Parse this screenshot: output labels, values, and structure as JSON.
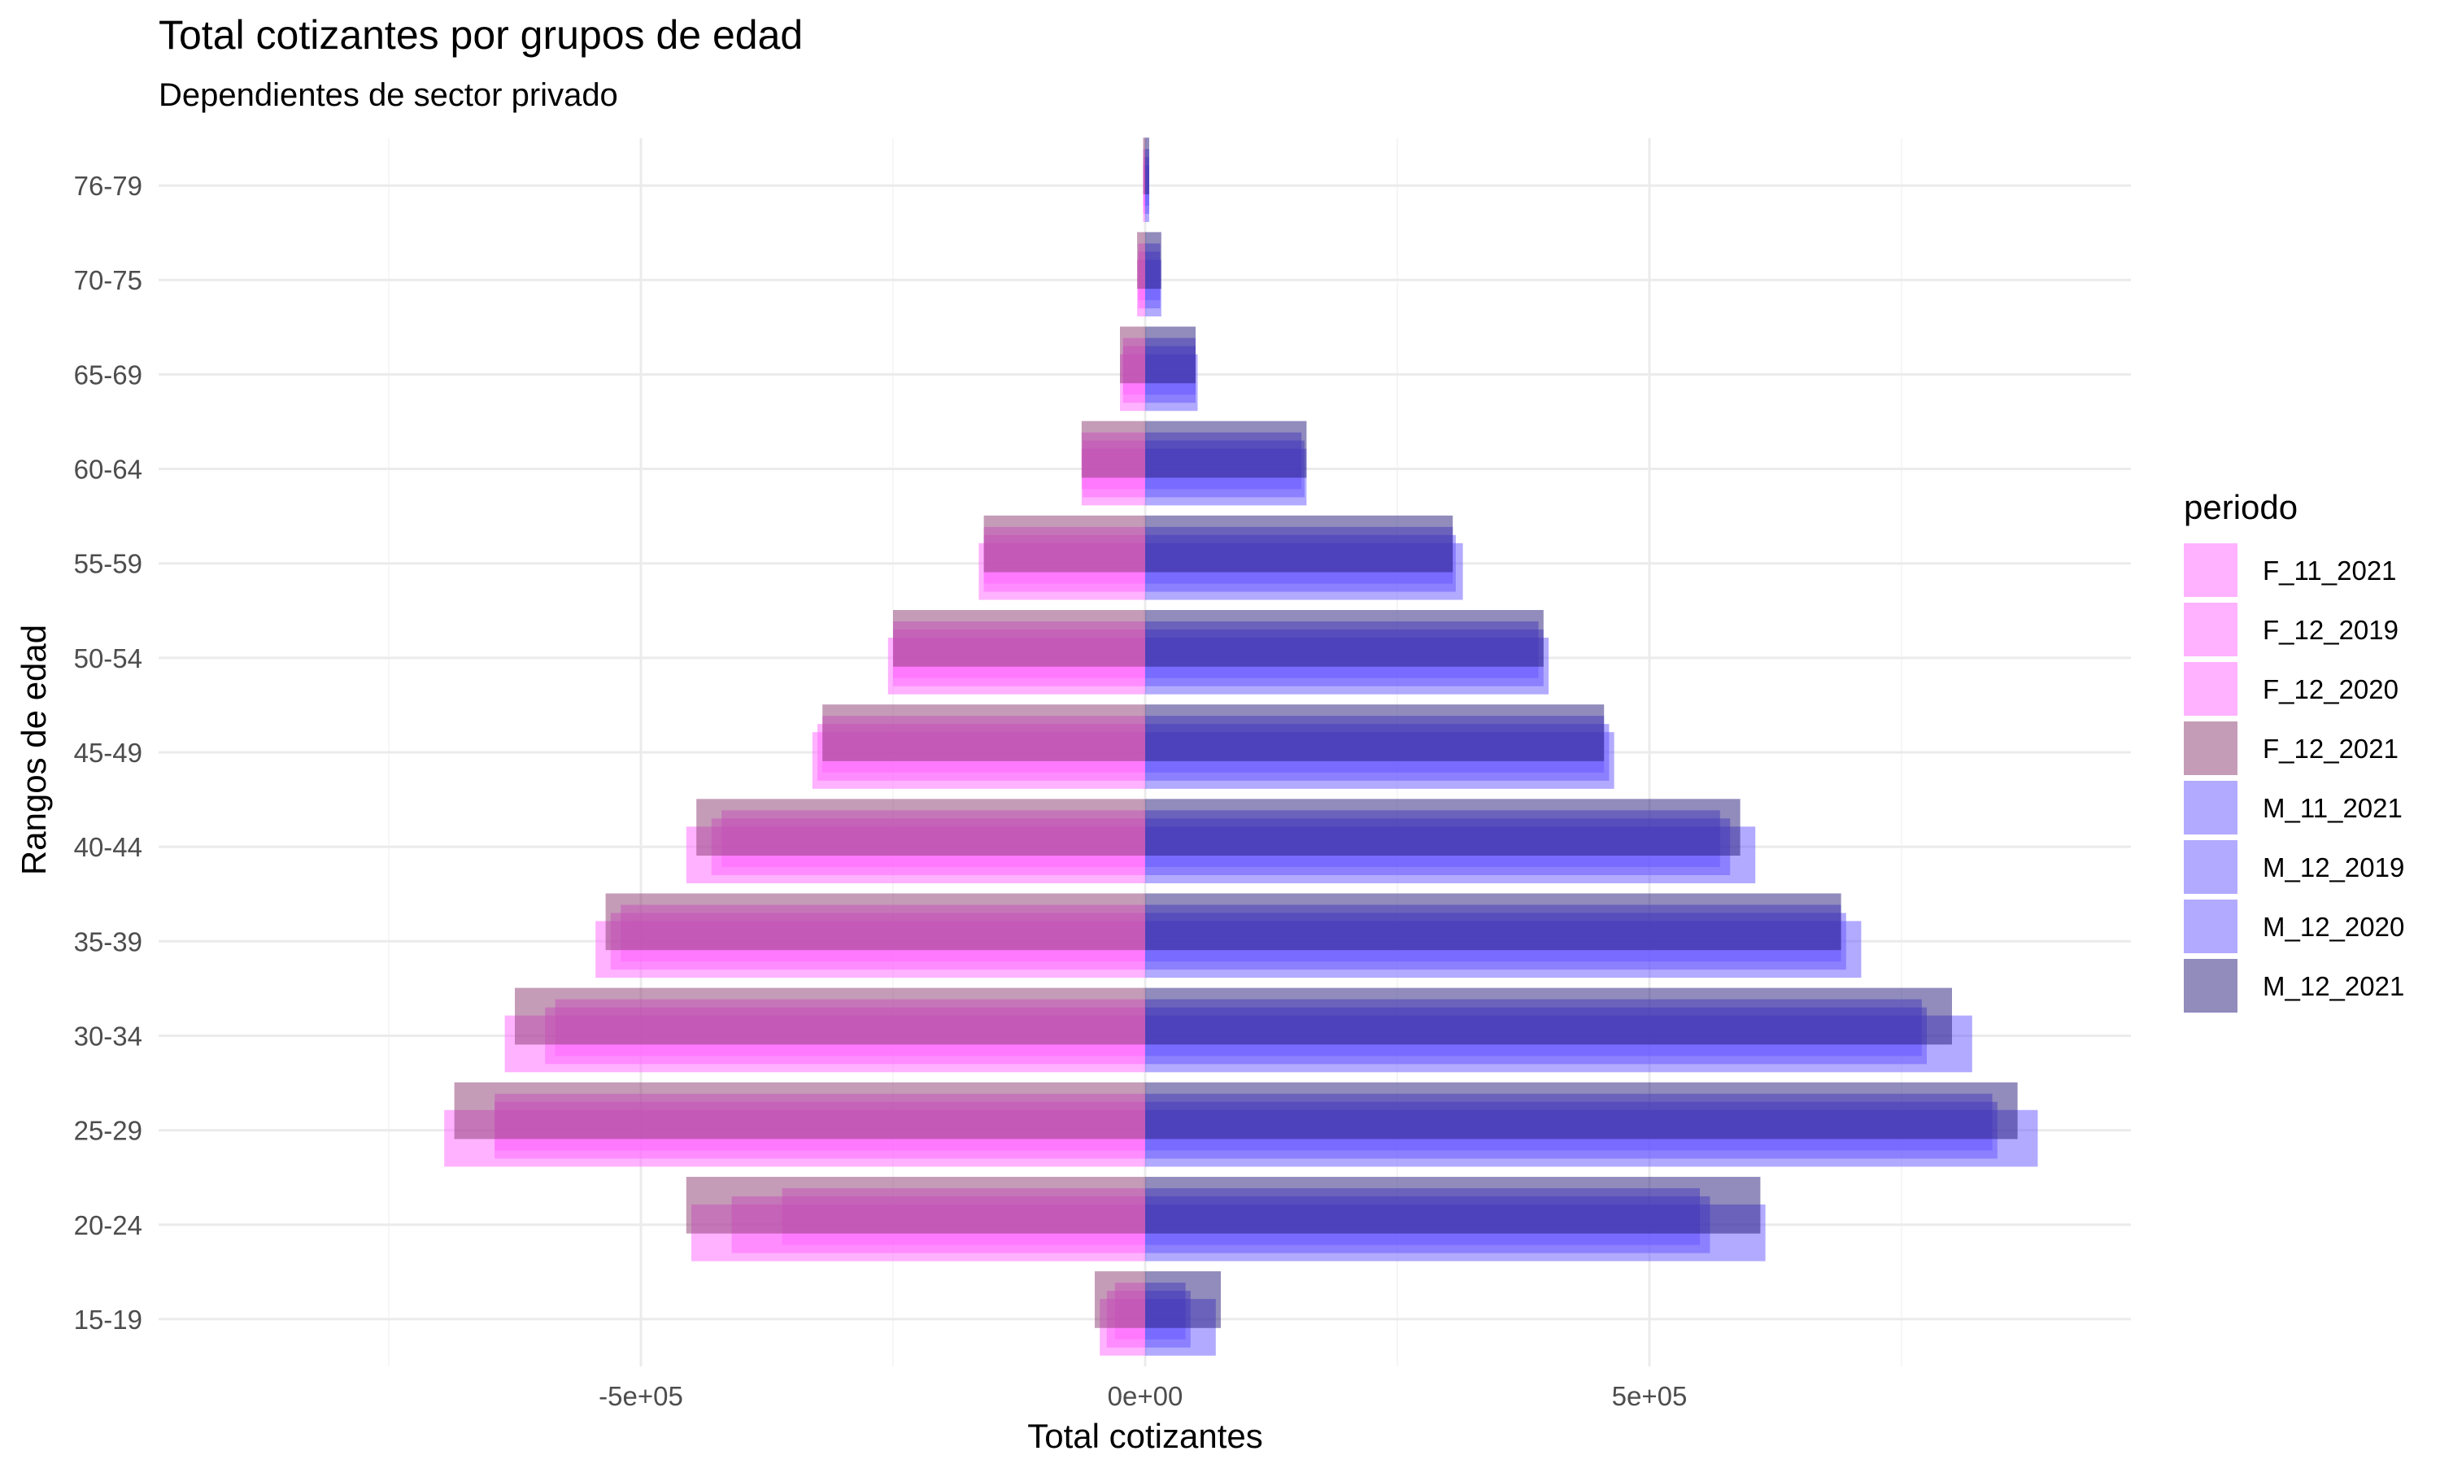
{
  "chart_data": {
    "type": "bar",
    "orientation": "horizontal",
    "title": "Total cotizantes por grupos de edad",
    "subtitle": "Dependientes de sector privado",
    "xlabel": "Total cotizantes",
    "ylabel": "Rangos de edad",
    "xlim": [
      -1500000,
      1000000
    ],
    "x_ticks": [
      -500000,
      0,
      500000
    ],
    "x_tick_labels": [
      "-5e+05",
      "0e+00",
      "5e+05"
    ],
    "grid": true,
    "legend_title": "periodo",
    "legend_position": "right",
    "categories": [
      "15-19",
      "20-24",
      "25-29",
      "30-34",
      "35-39",
      "40-44",
      "45-49",
      "50-54",
      "55-59",
      "60-64",
      "65-69",
      "70-75",
      "76-79"
    ],
    "series": [
      {
        "name": "F_11_2021",
        "color": "#ff66ff",
        "values": [
          -30000,
          -360000,
          -645000,
          -585000,
          -520000,
          -420000,
          -320000,
          -250000,
          -160000,
          -63000,
          -22000,
          -7000,
          -2000
        ]
      },
      {
        "name": "F_12_2019",
        "color": "#ff66ff",
        "values": [
          -45000,
          -450000,
          -695000,
          -635000,
          -545000,
          -455000,
          -330000,
          -255000,
          -165000,
          -63000,
          -25000,
          -8000,
          -2000
        ]
      },
      {
        "name": "F_12_2020",
        "color": "#ff66ff",
        "values": [
          -38000,
          -410000,
          -645000,
          -595000,
          -530000,
          -430000,
          -325000,
          -250000,
          -160000,
          -62000,
          -22000,
          -7000,
          -2000
        ]
      },
      {
        "name": "F_12_2021",
        "color": "#8b3a72",
        "values": [
          -50000,
          -455000,
          -685000,
          -625000,
          -535000,
          -445000,
          -320000,
          -250000,
          -160000,
          -63000,
          -25000,
          -8000,
          -2000
        ]
      },
      {
        "name": "M_11_2021",
        "color": "#6655ff",
        "values": [
          40000,
          550000,
          840000,
          770000,
          690000,
          570000,
          455000,
          390000,
          305000,
          155000,
          50000,
          15000,
          4000
        ]
      },
      {
        "name": "M_12_2019",
        "color": "#6655ff",
        "values": [
          70000,
          615000,
          885000,
          820000,
          710000,
          605000,
          465000,
          400000,
          315000,
          160000,
          52000,
          16000,
          4000
        ]
      },
      {
        "name": "M_12_2020",
        "color": "#6655ff",
        "values": [
          45000,
          560000,
          845000,
          775000,
          695000,
          580000,
          460000,
          395000,
          308000,
          158000,
          50000,
          15000,
          4000
        ]
      },
      {
        "name": "M_12_2021",
        "color": "#241a7a",
        "values": [
          75000,
          610000,
          865000,
          800000,
          690000,
          590000,
          455000,
          395000,
          305000,
          160000,
          50000,
          16000,
          4000
        ]
      }
    ]
  }
}
